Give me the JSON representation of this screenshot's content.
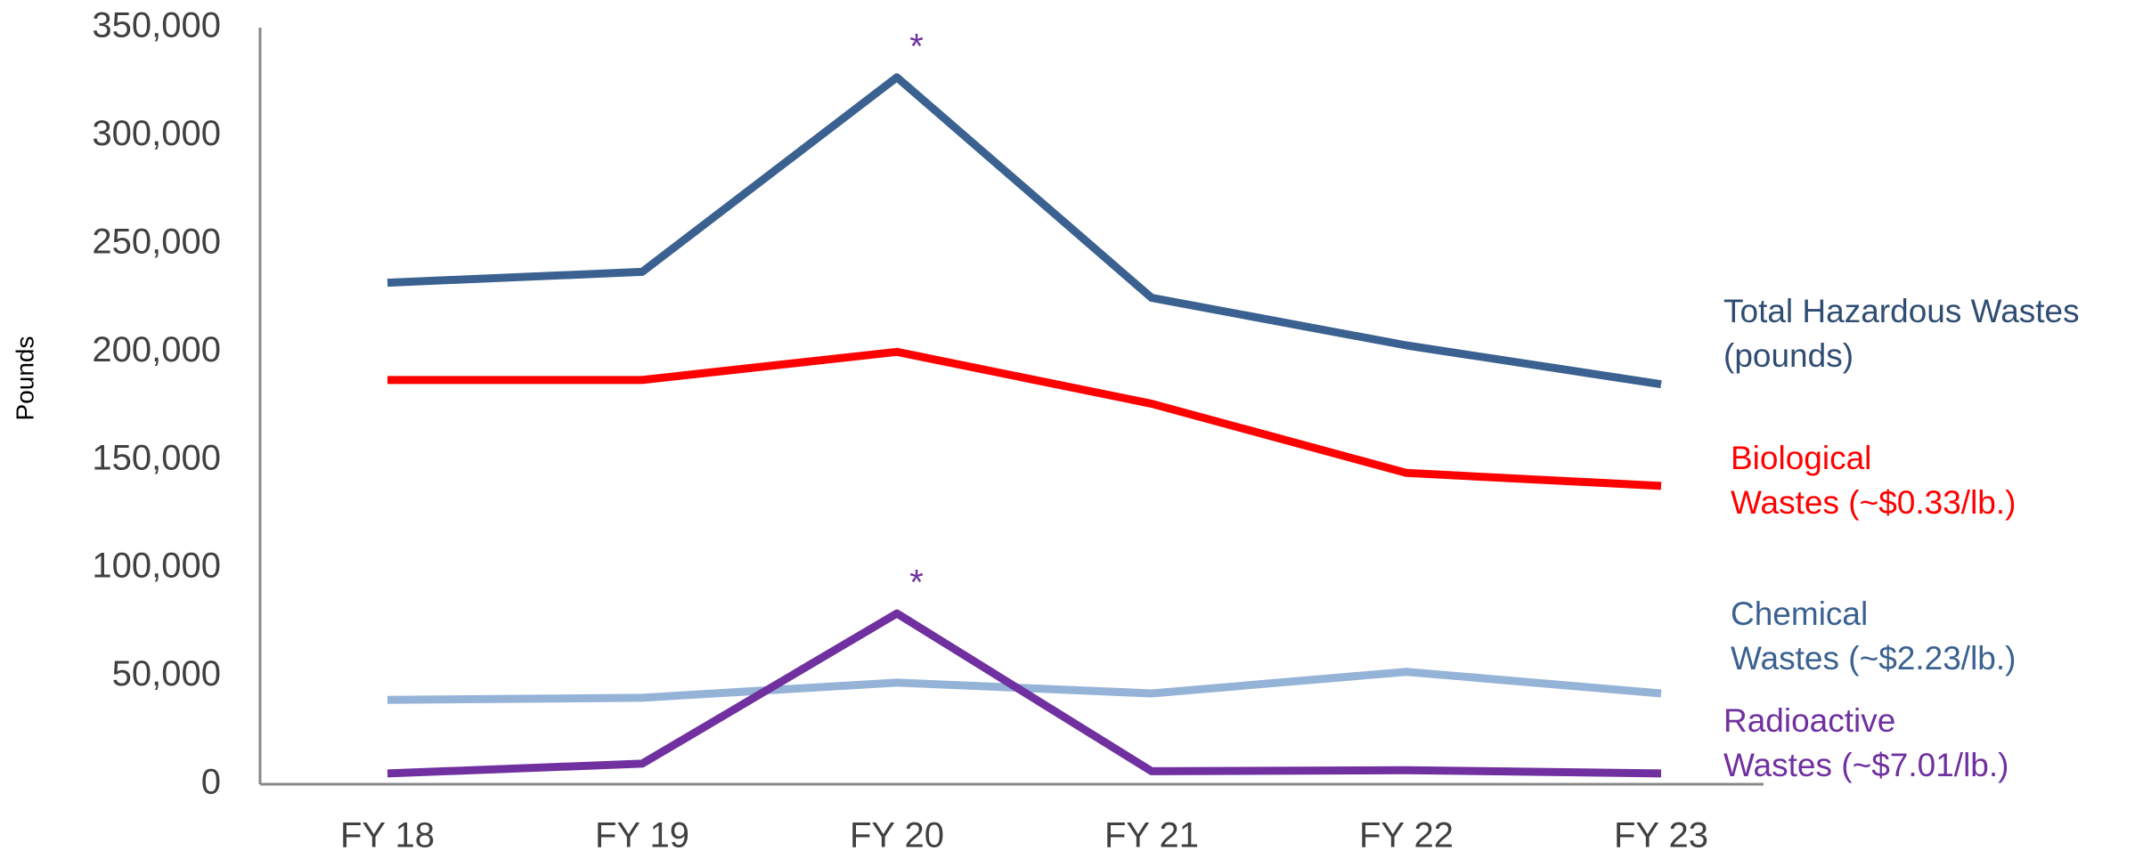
{
  "chart_data": {
    "type": "line",
    "y_label": "Pounds",
    "categories": [
      "FY 18",
      "FY 19",
      "FY 20",
      "FY 21",
      "FY 22",
      "FY 23"
    ],
    "series": [
      {
        "name": "Total Hazardous Wastes\n(pounds)",
        "color": "#3a6190",
        "label_color": "#2f4d72",
        "values": [
          232000,
          237000,
          327000,
          225000,
          203000,
          185000
        ]
      },
      {
        "name": "Biological\nWastes  (~$0.33/lb.)",
        "color": "#ff0000",
        "label_color": "#ff0000",
        "values": [
          187000,
          187000,
          200000,
          176000,
          144000,
          138000
        ]
      },
      {
        "name": "Chemical\nWastes (~$2.23/lb.)",
        "color": "#95b3d7",
        "label_color": "#3a6190",
        "values": [
          39000,
          40000,
          47000,
          42000,
          52000,
          42000
        ]
      },
      {
        "name": "Radioactive\nWastes (~$7.01/lb.)",
        "color": "#7030a0",
        "label_color": "#7030a0",
        "values": [
          5000,
          9500,
          79000,
          6000,
          6500,
          5000
        ]
      }
    ],
    "annotations": [
      "*",
      "*"
    ],
    "ylim": [
      0,
      350000
    ],
    "yticks": [
      0,
      {
        "value": 50000,
        "label": "50,000"
      },
      {
        "value": 100000,
        "label": "100,000"
      },
      {
        "value": 150000,
        "label": "150,000"
      },
      {
        "value": 200000,
        "label": "200,000"
      },
      {
        "value": 250000,
        "label": "250,000"
      },
      {
        "value": 300000,
        "label": "300,000"
      },
      {
        "value": 350000,
        "label": "350,000"
      }
    ],
    "grid": false
  }
}
